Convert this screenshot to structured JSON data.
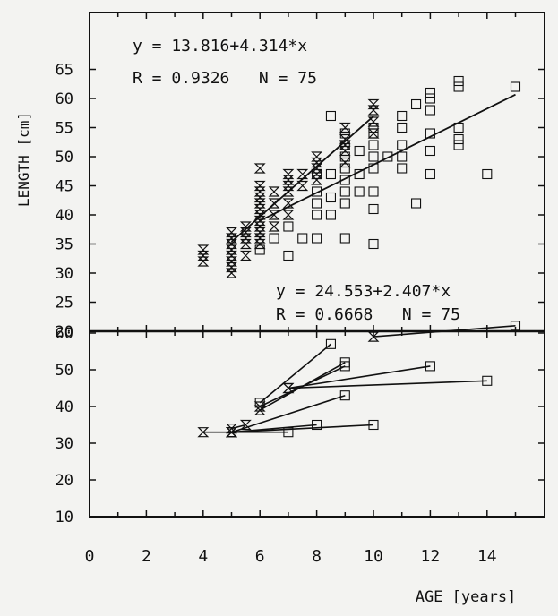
{
  "chart_data": [
    {
      "type": "scatter",
      "panel": "top",
      "xlabel": "AGE [years]",
      "ylabel": "LENGTH [cm]",
      "xlim": [
        0,
        15.5
      ],
      "ylim": [
        20,
        70
      ],
      "x_ticks": [
        0,
        2,
        4,
        6,
        8,
        10,
        12,
        14
      ],
      "y_ticks": [
        20,
        25,
        30,
        35,
        40,
        45,
        50,
        55,
        60,
        65
      ],
      "annotations": [
        {
          "text": "y = 13.816+4.314*x",
          "placement": "top-left"
        },
        {
          "text": "R = 0.9326   N = 75",
          "placement": "top-left"
        },
        {
          "text": "y = 24.553+2.407*x",
          "placement": "bottom-right"
        },
        {
          "text": "R = 0.6668   N = 75",
          "placement": "bottom-right"
        }
      ],
      "series": [
        {
          "marker": "hourglass",
          "fit": {
            "intercept": 13.816,
            "slope": 4.314,
            "x_range": [
              5,
              10
            ]
          },
          "points": [
            [
              4,
              32
            ],
            [
              4,
              33
            ],
            [
              4,
              34
            ],
            [
              5,
              30
            ],
            [
              5,
              31
            ],
            [
              5,
              32
            ],
            [
              5,
              33
            ],
            [
              5,
              34
            ],
            [
              5,
              35
            ],
            [
              5,
              36
            ],
            [
              5,
              37
            ],
            [
              5.5,
              33
            ],
            [
              5.5,
              35
            ],
            [
              5.5,
              36
            ],
            [
              5.5,
              37
            ],
            [
              5.5,
              38
            ],
            [
              6,
              35
            ],
            [
              6,
              36
            ],
            [
              6,
              37
            ],
            [
              6,
              38
            ],
            [
              6,
              39
            ],
            [
              6,
              40
            ],
            [
              6,
              41
            ],
            [
              6,
              42
            ],
            [
              6,
              43
            ],
            [
              6,
              44
            ],
            [
              6,
              45
            ],
            [
              6,
              48
            ],
            [
              6.5,
              38
            ],
            [
              6.5,
              40
            ],
            [
              6.5,
              42
            ],
            [
              6.5,
              44
            ],
            [
              7,
              40
            ],
            [
              7,
              42
            ],
            [
              7,
              44
            ],
            [
              7,
              45
            ],
            [
              7,
              46
            ],
            [
              7,
              47
            ],
            [
              7.5,
              45
            ],
            [
              7.5,
              47
            ],
            [
              8,
              46
            ],
            [
              8,
              47
            ],
            [
              8,
              48
            ],
            [
              8,
              49
            ],
            [
              8,
              50
            ],
            [
              9,
              49
            ],
            [
              9,
              51
            ],
            [
              9,
              52
            ],
            [
              9,
              53
            ],
            [
              9,
              55
            ],
            [
              10,
              54
            ],
            [
              10,
              56
            ],
            [
              10,
              58
            ],
            [
              10,
              59
            ]
          ]
        },
        {
          "marker": "square",
          "fit": {
            "intercept": 24.553,
            "slope": 2.407,
            "x_range": [
              6,
              15
            ]
          },
          "points": [
            [
              6,
              34
            ],
            [
              6.5,
              36
            ],
            [
              7,
              33
            ],
            [
              7,
              38
            ],
            [
              7.5,
              36
            ],
            [
              8,
              36
            ],
            [
              8,
              40
            ],
            [
              8,
              42
            ],
            [
              8,
              44
            ],
            [
              8,
              47
            ],
            [
              8.5,
              40
            ],
            [
              8.5,
              43
            ],
            [
              8.5,
              47
            ],
            [
              8.5,
              57
            ],
            [
              9,
              36
            ],
            [
              9,
              42
            ],
            [
              9,
              44
            ],
            [
              9,
              46
            ],
            [
              9,
              48
            ],
            [
              9,
              50
            ],
            [
              9,
              52
            ],
            [
              9,
              54
            ],
            [
              9.5,
              44
            ],
            [
              9.5,
              47
            ],
            [
              9.5,
              51
            ],
            [
              10,
              35
            ],
            [
              10,
              41
            ],
            [
              10,
              44
            ],
            [
              10,
              48
            ],
            [
              10,
              50
            ],
            [
              10,
              52
            ],
            [
              10,
              54
            ],
            [
              10,
              55
            ],
            [
              10.5,
              50
            ],
            [
              11,
              48
            ],
            [
              11,
              50
            ],
            [
              11,
              52
            ],
            [
              11,
              55
            ],
            [
              11,
              57
            ],
            [
              11.5,
              42
            ],
            [
              11.5,
              59
            ],
            [
              12,
              47
            ],
            [
              12,
              51
            ],
            [
              12,
              54
            ],
            [
              12,
              58
            ],
            [
              12,
              60
            ],
            [
              12,
              61
            ],
            [
              13,
              52
            ],
            [
              13,
              53
            ],
            [
              13,
              55
            ],
            [
              13,
              62
            ],
            [
              13,
              63
            ],
            [
              14,
              47
            ],
            [
              15,
              62
            ]
          ]
        }
      ]
    },
    {
      "type": "line",
      "panel": "bottom",
      "xlim": [
        0,
        15.5
      ],
      "ylim": [
        10,
        68
      ],
      "x_ticks": [
        0,
        2,
        4,
        6,
        8,
        10,
        12,
        14
      ],
      "y_ticks": [
        10,
        20,
        30,
        40,
        50,
        60
      ],
      "segments": [
        {
          "from": [
            4,
            33
          ],
          "to": [
            5,
            33
          ],
          "marker_from": "hourglass",
          "marker_to": "hourglass"
        },
        {
          "from": [
            5,
            33
          ],
          "to": [
            7,
            33
          ],
          "marker_from": "hourglass",
          "marker_to": "square"
        },
        {
          "from": [
            5,
            34
          ],
          "to": [
            5.5,
            35
          ],
          "marker_from": "hourglass",
          "marker_to": "hourglass"
        },
        {
          "from": [
            5,
            33
          ],
          "to": [
            8,
            35
          ],
          "marker_from": "hourglass",
          "marker_to": "square"
        },
        {
          "from": [
            5,
            33
          ],
          "to": [
            10,
            35
          ],
          "marker_from": "hourglass",
          "marker_to": "square"
        },
        {
          "from": [
            5,
            33
          ],
          "to": [
            9,
            43
          ],
          "marker_from": "hourglass",
          "marker_to": "square"
        },
        {
          "from": [
            6,
            39
          ],
          "to": [
            9,
            52
          ],
          "marker_from": "hourglass",
          "marker_to": "square"
        },
        {
          "from": [
            6,
            40
          ],
          "to": [
            9,
            51
          ],
          "marker_from": "hourglass",
          "marker_to": "square"
        },
        {
          "from": [
            6,
            41
          ],
          "to": [
            8.5,
            57
          ],
          "marker_from": "square",
          "marker_to": "square"
        },
        {
          "from": [
            7,
            45
          ],
          "to": [
            12,
            51
          ],
          "marker_from": "hourglass",
          "marker_to": "square"
        },
        {
          "from": [
            7,
            45
          ],
          "to": [
            14,
            47
          ],
          "marker_from": "hourglass",
          "marker_to": "square"
        },
        {
          "from": [
            10,
            59
          ],
          "to": [
            15,
            62
          ],
          "marker_from": "hourglass",
          "marker_to": "square"
        }
      ]
    }
  ]
}
